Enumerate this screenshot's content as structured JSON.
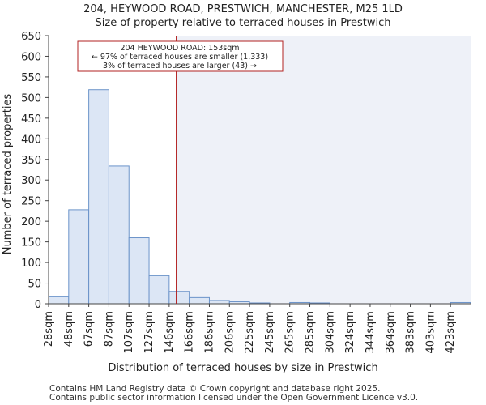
{
  "chart_data": {
    "type": "bar",
    "title": "204, HEYWOOD ROAD, PRESTWICH, MANCHESTER, M25 1LD",
    "subtitle": "Size of property relative to terraced houses in Prestwich",
    "xlabel": "Distribution of terraced houses by size in Prestwich",
    "ylabel": "Number of terraced properties",
    "ylim": [
      0,
      650
    ],
    "yticks": [
      0,
      50,
      100,
      150,
      200,
      250,
      300,
      350,
      400,
      450,
      500,
      550,
      600,
      650
    ],
    "categories": [
      "28sqm",
      "48sqm",
      "67sqm",
      "87sqm",
      "107sqm",
      "127sqm",
      "146sqm",
      "166sqm",
      "186sqm",
      "206sqm",
      "225sqm",
      "245sqm",
      "265sqm",
      "285sqm",
      "304sqm",
      "324sqm",
      "344sqm",
      "364sqm",
      "383sqm",
      "403sqm",
      "423sqm"
    ],
    "values": [
      17,
      228,
      519,
      334,
      160,
      68,
      30,
      15,
      8,
      5,
      2,
      0,
      3,
      2,
      0,
      0,
      0,
      0,
      0,
      0,
      3
    ],
    "marker_value_sqm": 153,
    "bar_color": "#dce6f5",
    "bar_edge": "#6b93c9",
    "highlight_color": "#eef1f8",
    "marker_color": "#b22222",
    "annotation": {
      "line1": "204 HEYWOOD ROAD: 153sqm",
      "line2": "← 97% of terraced houses are smaller (1,333)",
      "line3": "3% of terraced houses are larger (43) →"
    }
  },
  "footer": {
    "line1": "Contains HM Land Registry data © Crown copyright and database right 2025.",
    "line2": "Contains public sector information licensed under the Open Government Licence v3.0."
  }
}
